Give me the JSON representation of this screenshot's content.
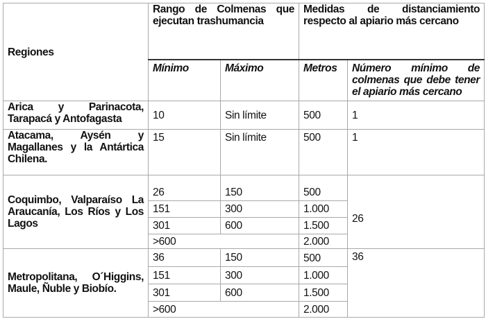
{
  "headers": {
    "regiones": "Regiones",
    "rango": "Rango de Colmenas que ejecutan trashumancia",
    "medidas": "Medidas de distanciamiento respecto al apiario más cercano",
    "minimo": "Mínimo",
    "maximo": "Máximo",
    "metros": "Metros",
    "numero": "Número mínimo de colmenas que debe tener el apiario más cercano"
  },
  "rows": [
    {
      "region": "Arica y Parinacota, Tarapacá y Antofagasta",
      "minimo": "10",
      "maximo": "Sin límite",
      "metros": "500",
      "numero": "1"
    },
    {
      "region": "Atacama, Aysén y Magallanes y la Antártica Chilena.",
      "minimo": "15",
      "maximo": "Sin límite",
      "metros": "500",
      "numero": "1"
    },
    {
      "region": "Coquimbo, Valparaíso La Araucanía, Los Ríos y Los Lagos",
      "numero": "26",
      "sub": [
        {
          "minimo": "26",
          "maximo": "150",
          "metros": "500"
        },
        {
          "minimo": "151",
          "maximo": "300",
          "metros": "1.000"
        },
        {
          "minimo": "301",
          "maximo": "600",
          "metros": "1.500"
        },
        {
          "minimo": ">600",
          "metros": "2.000"
        }
      ]
    },
    {
      "region": "Metropolitana, O´Higgins, Maule, Ñuble y Biobío.",
      "numero": "36",
      "sub": [
        {
          "minimo": "36",
          "maximo": "150",
          "metros": "500"
        },
        {
          "minimo": "151",
          "maximo": "300",
          "metros": "1.000"
        },
        {
          "minimo": "301",
          "maximo": "600",
          "metros": "1.500"
        },
        {
          "minimo": ">600",
          "metros": "2.000"
        }
      ]
    }
  ]
}
